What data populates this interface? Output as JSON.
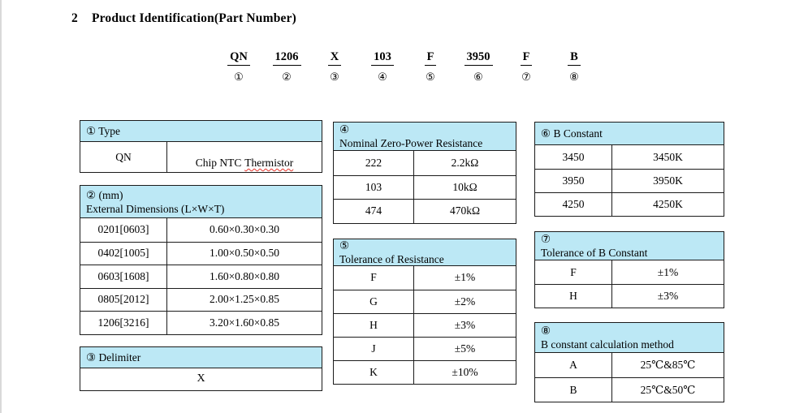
{
  "colors": {
    "header-bg": "#bce8f5",
    "border-color": "#1b1b1b",
    "squiggle-color": "#e5342a"
  },
  "header": {
    "section_number": "2",
    "title": "Product Identification(Part Number)"
  },
  "part_number": {
    "segments": [
      {
        "code": "QN",
        "index": "①"
      },
      {
        "code": "1206",
        "index": "②"
      },
      {
        "code": "X",
        "index": "③"
      },
      {
        "code": "103",
        "index": "④"
      },
      {
        "code": "F",
        "index": "⑤"
      },
      {
        "code": "3950",
        "index": "⑥"
      },
      {
        "code": "F",
        "index": "⑦"
      },
      {
        "code": "B",
        "index": "⑧"
      }
    ]
  },
  "tables": {
    "type": {
      "header": "① Type",
      "code": "QN",
      "value_prefix": "Chip NTC",
      "value_flagged": "Thermistor"
    },
    "dimensions": {
      "header_line1": "② (mm)",
      "header_line2": "External Dimensions (L×W×T)",
      "rows": [
        [
          "0201[0603]",
          "0.60×0.30×0.30"
        ],
        [
          "0402[1005]",
          "1.00×0.50×0.50"
        ],
        [
          "0603[1608]",
          "1.60×0.80×0.80"
        ],
        [
          "0805[2012]",
          "2.00×1.25×0.85"
        ],
        [
          "1206[3216]",
          "3.20×1.60×0.85"
        ]
      ]
    },
    "delimiter": {
      "header": "③ Delimiter",
      "value": "X"
    },
    "resistance": {
      "header_line1": "④",
      "header_line2": "Nominal Zero-Power Resistance",
      "rows": [
        [
          "222",
          "2.2kΩ"
        ],
        [
          "103",
          "10kΩ"
        ],
        [
          "474",
          "470kΩ"
        ]
      ]
    },
    "tolerance_resistance": {
      "header_line1": "⑤",
      "header_line2": "Tolerance of Resistance",
      "rows": [
        [
          "F",
          "±1%"
        ],
        [
          "G",
          "±2%"
        ],
        [
          "H",
          "±3%"
        ],
        [
          "J",
          "±5%"
        ],
        [
          "K",
          "±10%"
        ]
      ]
    },
    "b_constant": {
      "header": "⑥ B Constant",
      "rows": [
        [
          "3450",
          "3450K"
        ],
        [
          "3950",
          "3950K"
        ],
        [
          "4250",
          "4250K"
        ]
      ]
    },
    "tolerance_b_constant": {
      "header_line1": "⑦",
      "header_line2": "Tolerance of B Constant",
      "rows": [
        [
          "F",
          "±1%"
        ],
        [
          "H",
          "±3%"
        ]
      ]
    },
    "b_constant_method": {
      "header_line1": "⑧",
      "header_line2": "B constant calculation method",
      "rows": [
        [
          "A",
          "25℃&85℃"
        ],
        [
          "B",
          "25℃&50℃"
        ]
      ]
    }
  }
}
